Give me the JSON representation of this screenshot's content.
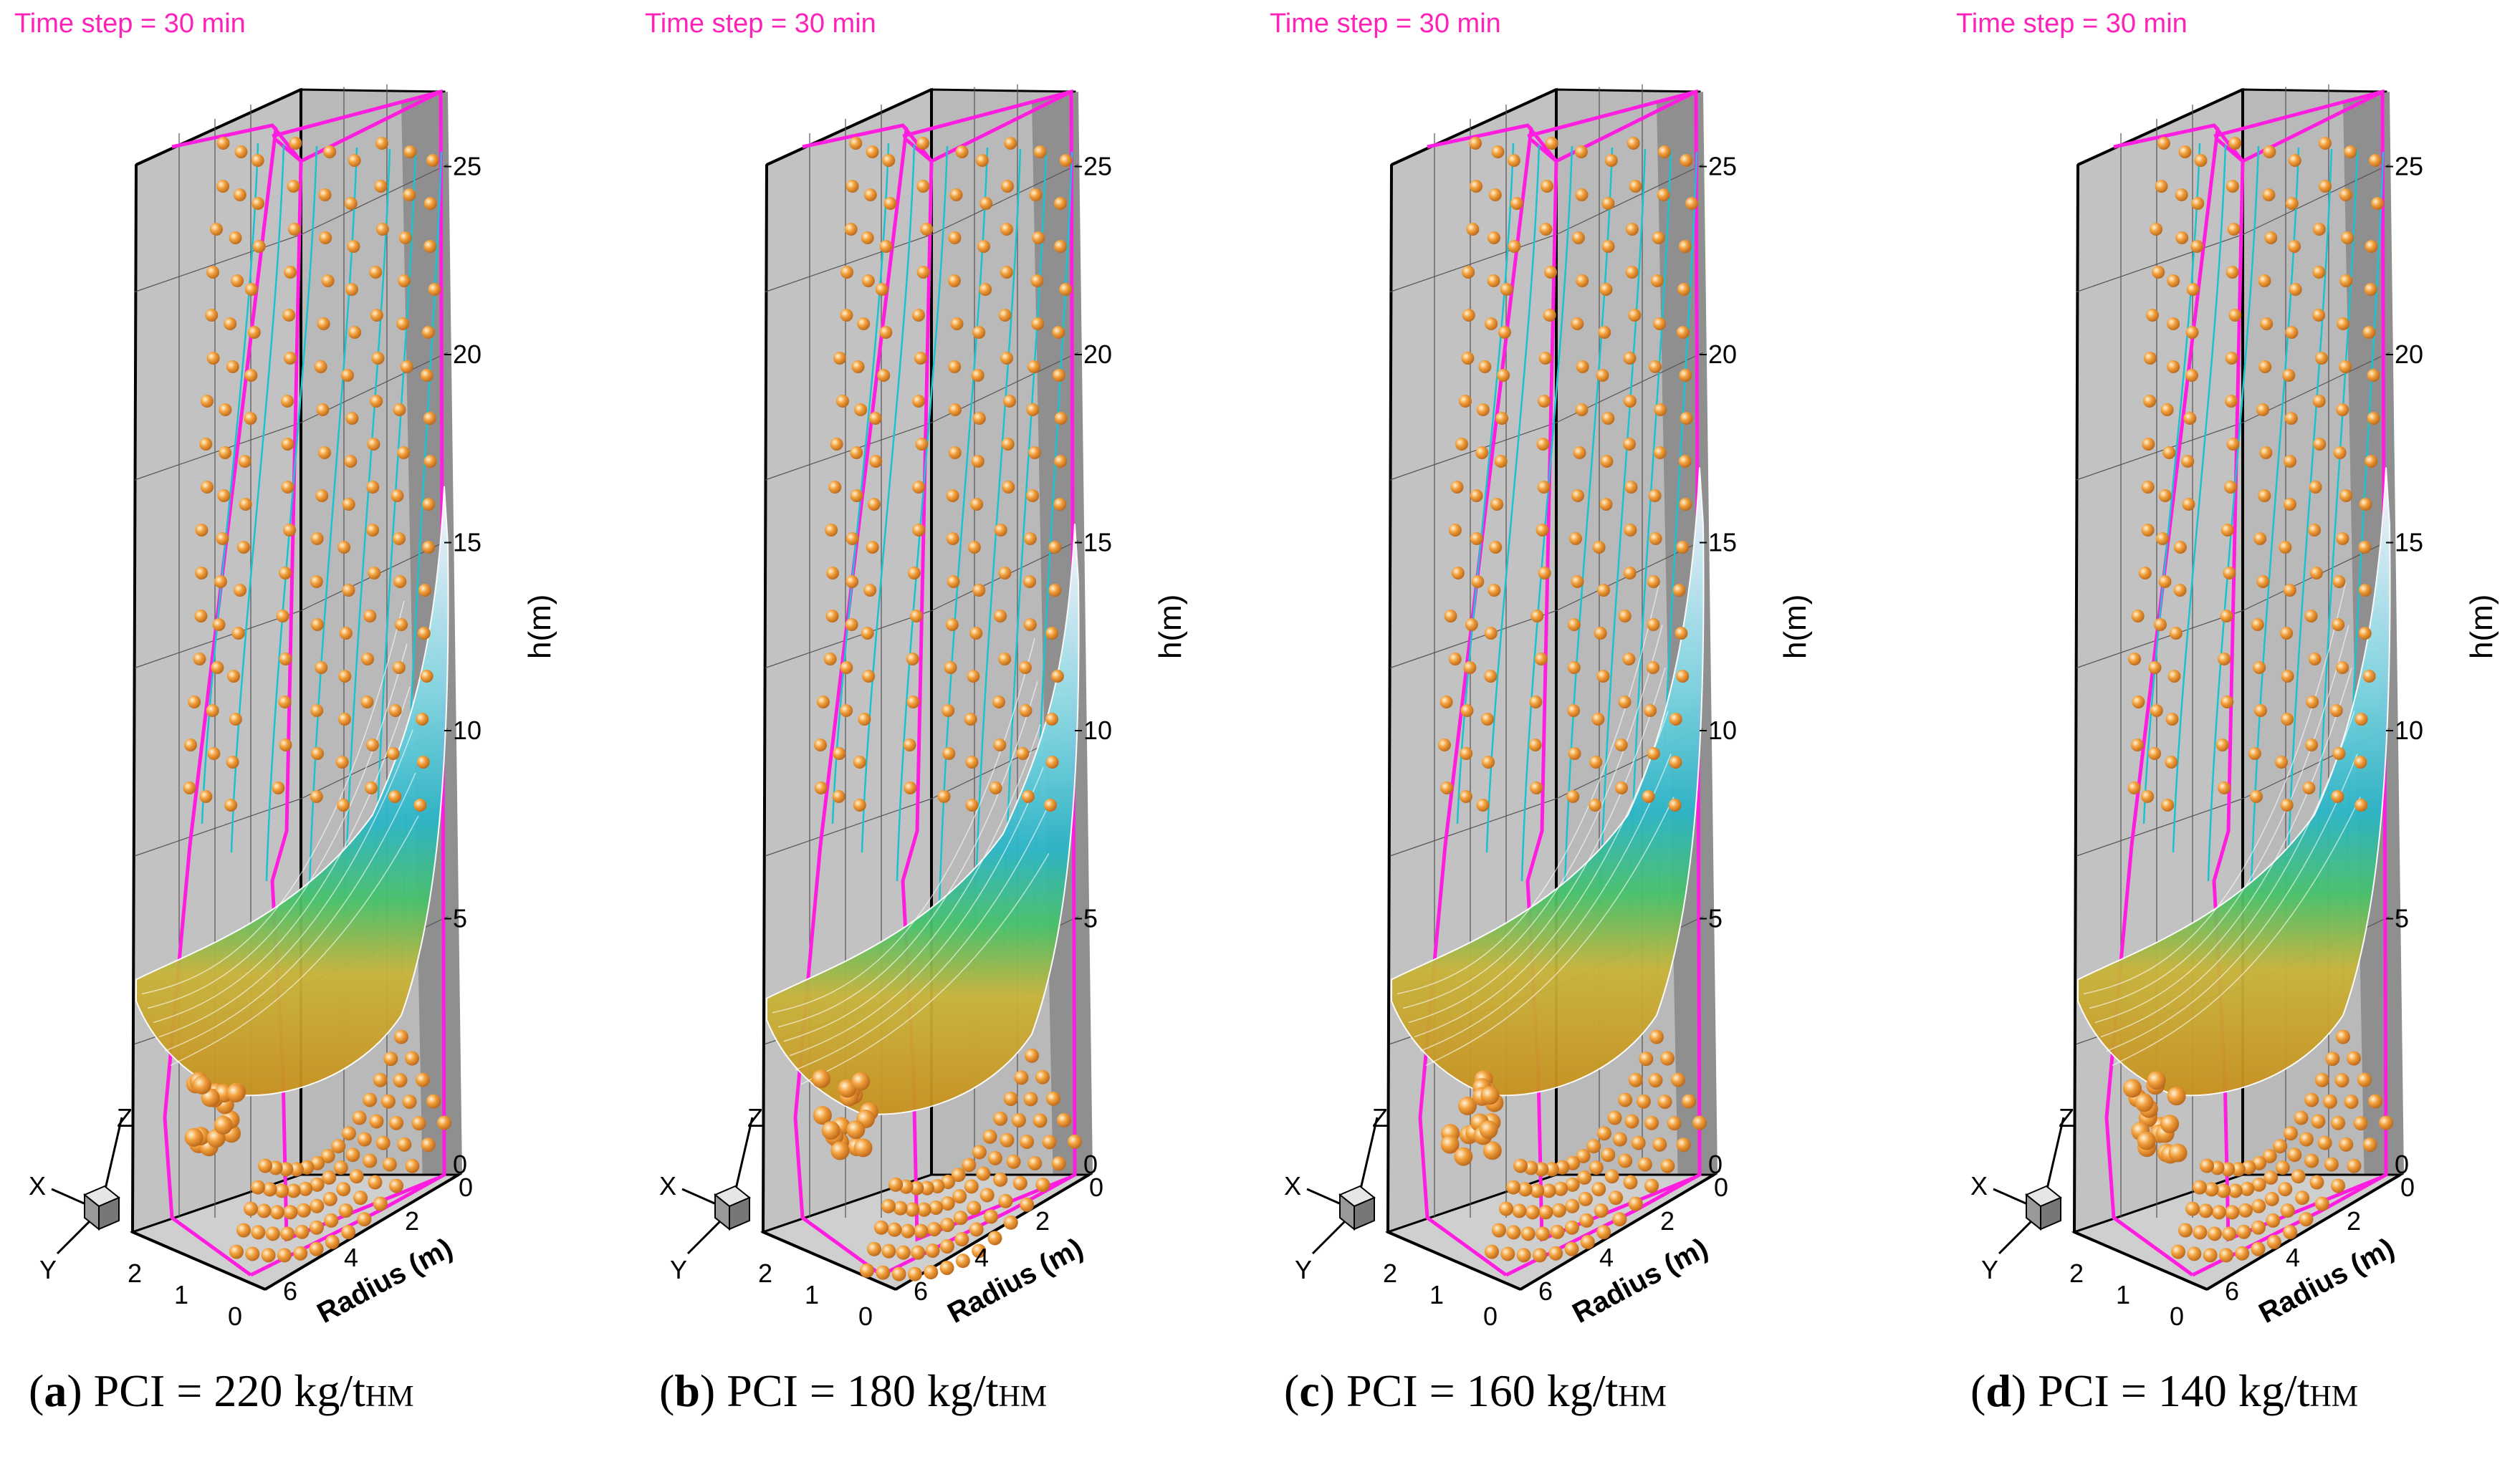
{
  "chart_data": [
    {
      "type": "3d-particle-flow",
      "panel": "a",
      "time_step_label": "Time step = 30 min",
      "caption": {
        "letter": "a",
        "text": "PCI = 220 kg/t",
        "subscript": "HM"
      },
      "zlabel": "h(m)",
      "rlabel": "Radius (m)",
      "z_ticks": [
        "0",
        "5",
        "10",
        "15",
        "20",
        "25"
      ],
      "r_ticks": [
        "0",
        "2",
        "4",
        "6"
      ],
      "depth_ticks": [
        "0",
        "1",
        "2"
      ],
      "zlim": [
        0,
        28
      ],
      "axis_triad": [
        "X",
        "Y",
        "Z"
      ],
      "cohesive_zone_top_h": 18.5,
      "cohesive_zone_bottom_h": 5
    },
    {
      "type": "3d-particle-flow",
      "panel": "b",
      "time_step_label": "Time step = 30 min",
      "caption": {
        "letter": "b",
        "text": "PCI = 180 kg/t",
        "subscript": "HM"
      },
      "zlabel": "h(m)",
      "rlabel": "Radius (m)",
      "z_ticks": [
        "0",
        "5",
        "10",
        "15",
        "20",
        "25"
      ],
      "r_ticks": [
        "0",
        "2",
        "4",
        "6"
      ],
      "depth_ticks": [
        "0",
        "1",
        "2"
      ],
      "zlim": [
        0,
        28
      ],
      "axis_triad": [
        "X",
        "Y",
        "Z"
      ],
      "cohesive_zone_top_h": 17.5,
      "cohesive_zone_bottom_h": 4.5
    },
    {
      "type": "3d-particle-flow",
      "panel": "c",
      "time_step_label": "Time step = 30 min",
      "caption": {
        "letter": "c",
        "text": "PCI = 160 kg/t",
        "subscript": "HM"
      },
      "zlabel": "h(m)",
      "rlabel": "Radius (m)",
      "z_ticks": [
        "0",
        "5",
        "10",
        "15",
        "20",
        "25"
      ],
      "r_ticks": [
        "0",
        "2",
        "4",
        "6"
      ],
      "depth_ticks": [
        "0",
        "1",
        "2"
      ],
      "zlim": [
        0,
        28
      ],
      "axis_triad": [
        "X",
        "Y",
        "Z"
      ],
      "cohesive_zone_top_h": 19,
      "cohesive_zone_bottom_h": 5
    },
    {
      "type": "3d-particle-flow",
      "panel": "d",
      "time_step_label": "Time step = 30 min",
      "caption": {
        "letter": "d",
        "text": "PCI = 140 kg/t",
        "subscript": "HM"
      },
      "zlabel": "h(m)",
      "rlabel": "Radius (m)",
      "z_ticks": [
        "0",
        "5",
        "10",
        "15",
        "20",
        "25"
      ],
      "r_ticks": [
        "0",
        "2",
        "4",
        "6"
      ],
      "depth_ticks": [
        "0",
        "1",
        "2"
      ],
      "zlim": [
        0,
        28
      ],
      "axis_triad": [
        "X",
        "Y",
        "Z"
      ],
      "cohesive_zone_top_h": 19,
      "cohesive_zone_bottom_h": 5
    }
  ],
  "colors": {
    "outline": "#ff1ee0",
    "streamline": "#19c3d2",
    "particle": "#f2a03c",
    "time_label": "#ff22b8",
    "wall": "#c2c2c2",
    "dark_wall": "#8f8f8f"
  }
}
